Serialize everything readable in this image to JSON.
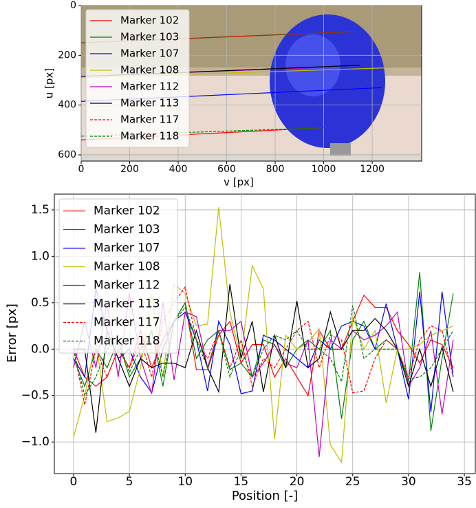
{
  "chart_data": [
    {
      "type": "line",
      "xlabel": "v [px]",
      "ylabel": "u [px]",
      "xlim": [
        0,
        1404
      ],
      "ylim": [
        625,
        0
      ],
      "xticks": [
        0,
        200,
        400,
        600,
        800,
        1000,
        1200
      ],
      "yticks": [
        0,
        200,
        400,
        600
      ],
      "grid": true,
      "legend": "upper left",
      "series": [
        {
          "name": "Marker 102",
          "color": "#ff0000",
          "dashed": false,
          "x": [
            0,
            1020
          ],
          "values": [
            540,
            490
          ]
        },
        {
          "name": "Marker 103",
          "color": "#008000",
          "dashed": false,
          "x": [
            0,
            1120
          ],
          "values": [
            150,
            105
          ]
        },
        {
          "name": "Marker 107",
          "color": "#0000ff",
          "dashed": false,
          "x": [
            0,
            1240
          ],
          "values": [
            385,
            330
          ]
        },
        {
          "name": "Marker 108",
          "color": "#bfbf00",
          "dashed": false,
          "x": [
            0,
            1280
          ],
          "values": [
            290,
            250
          ]
        },
        {
          "name": "Marker 112",
          "color": "#bf00bf",
          "dashed": false,
          "x": [
            0,
            950
          ],
          "values": [
            285,
            250
          ]
        },
        {
          "name": "Marker 113",
          "color": "#000000",
          "dashed": false,
          "x": [
            0,
            1150
          ],
          "values": [
            285,
            240
          ]
        },
        {
          "name": "Marker 117",
          "color": "#ff0000",
          "dashed": true,
          "x": [
            0,
            1130
          ],
          "values": [
            150,
            105
          ]
        },
        {
          "name": "Marker 118",
          "color": "#008000",
          "dashed": true,
          "x": [
            0,
            1030
          ],
          "values": [
            525,
            490
          ]
        }
      ]
    },
    {
      "type": "line",
      "xlabel": "Position [-]",
      "ylabel": "Error [px]",
      "xlim": [
        -1.72,
        35.98
      ],
      "ylim": [
        -1.34,
        1.67
      ],
      "xticks": [
        0,
        5,
        10,
        15,
        20,
        25,
        30,
        35
      ],
      "yticks": [
        {
          "value": -1.0,
          "label": "−1.0"
        },
        {
          "value": -0.5,
          "label": "−0.5"
        },
        {
          "value": 0.0,
          "label": "0.0"
        },
        {
          "value": 0.5,
          "label": "0.5"
        },
        {
          "value": 1.0,
          "label": "1.0"
        },
        {
          "value": 1.5,
          "label": "1.5"
        }
      ],
      "grid": true,
      "legend": "upper left",
      "x": [
        0,
        1,
        2,
        3,
        4,
        5,
        6,
        7,
        8,
        9,
        10,
        11,
        12,
        13,
        14,
        15,
        16,
        17,
        18,
        19,
        20,
        21,
        22,
        23,
        24,
        25,
        26,
        27,
        28,
        29,
        30,
        31,
        32,
        33,
        34
      ],
      "series": [
        {
          "name": "Marker 102",
          "color": "#ff0000",
          "dashed": false,
          "values": [
            0.0,
            -0.3,
            -0.4,
            -0.3,
            0.0,
            -0.2,
            0.2,
            -0.2,
            0.1,
            0.3,
            0.5,
            -0.22,
            -0.22,
            0.15,
            0.3,
            -0.15,
            0.05,
            0.05,
            -0.3,
            -0.1,
            -0.3,
            -0.5,
            0.2,
            0.0,
            0.0,
            0.3,
            0.58,
            0.45,
            0.45,
            0.2,
            0.05,
            -0.15,
            0.1,
            0.05,
            -0.2
          ]
        },
        {
          "name": "Marker 103",
          "color": "#008000",
          "dashed": false,
          "values": [
            -0.1,
            -0.4,
            0.0,
            -0.2,
            0.1,
            -0.3,
            -0.1,
            0.2,
            -0.4,
            0.3,
            0.5,
            -0.1,
            0.1,
            0.2,
            -0.22,
            -0.15,
            -0.3,
            0.1,
            0.05,
            -0.2,
            0.0,
            0.1,
            0.0,
            0.2,
            -0.75,
            0.1,
            0.3,
            0.0,
            0.1,
            0.0,
            -0.35,
            0.83,
            -0.88,
            -0.1,
            0.6
          ]
        },
        {
          "name": "Marker 107",
          "color": "#0000ff",
          "dashed": false,
          "values": [
            -0.1,
            -0.3,
            0.65,
            0.2,
            -0.1,
            0.0,
            -0.3,
            -0.47,
            0.0,
            0.3,
            0.4,
            0.1,
            -0.45,
            0.3,
            0.05,
            -0.48,
            -0.45,
            0.15,
            0.1,
            0.0,
            -0.1,
            -0.2,
            0.1,
            0.0,
            0.25,
            0.3,
            0.25,
            0.0,
            0.49,
            0.0,
            -0.54,
            0.62,
            -0.68,
            0.62,
            -0.3
          ]
        },
        {
          "name": "Marker 108",
          "color": "#bfbf00",
          "dashed": false,
          "values": [
            -0.95,
            -0.5,
            0.1,
            -0.78,
            -0.74,
            -0.67,
            -0.2,
            0.6,
            -0.3,
            0.7,
            0.6,
            0.25,
            0.27,
            1.53,
            0.4,
            -0.1,
            0.9,
            0.65,
            -0.97,
            0.15,
            0.0,
            0.07,
            0.22,
            -1.03,
            -1.22,
            0.35,
            0.0,
            0.2,
            -0.58,
            0.0,
            0.0,
            0.05,
            0.15,
            0.2,
            0.25
          ]
        },
        {
          "name": "Marker 112",
          "color": "#bf00bf",
          "dashed": false,
          "values": [
            -0.2,
            0.3,
            -0.2,
            0.5,
            -0.3,
            0.6,
            -0.1,
            -0.48,
            0.5,
            -0.33,
            0.4,
            0.35,
            -0.2,
            0.2,
            0.2,
            0.3,
            -0.3,
            -0.15,
            0.05,
            -0.15,
            -0.2,
            0.1,
            -1.16,
            0.1,
            0.0,
            0.2,
            0.1,
            0.15,
            0.25,
            0.4,
            -0.4,
            -0.2,
            0.2,
            -0.7,
            0.1
          ]
        },
        {
          "name": "Marker 113",
          "color": "#000000",
          "dashed": false,
          "values": [
            0.0,
            0.0,
            -0.9,
            0.2,
            -0.1,
            -0.4,
            -0.1,
            -0.2,
            -0.15,
            -0.15,
            -0.2,
            0.2,
            -0.2,
            -0.46,
            0.7,
            -0.1,
            0.3,
            -0.46,
            0.15,
            -0.2,
            0.52,
            -0.2,
            -0.1,
            0.4,
            0.0,
            0.2,
            0.2,
            0.33,
            0.2,
            0.0,
            -0.4,
            0.0,
            -0.4,
            0.02,
            -0.46
          ]
        },
        {
          "name": "Marker 117",
          "color": "#ff0000",
          "dashed": true,
          "values": [
            0.0,
            -0.6,
            0.0,
            -0.3,
            0.0,
            -0.2,
            0.1,
            -0.3,
            0.3,
            0.5,
            0.67,
            0.1,
            -0.1,
            0.2,
            -0.2,
            0.1,
            -0.4,
            -0.1,
            -0.2,
            0.0,
            0.2,
            0.3,
            -0.2,
            0.15,
            0.1,
            -0.47,
            -0.45,
            -0.1,
            0.1,
            0.0,
            -0.3,
            0.1,
            0.25,
            0.2,
            -0.3
          ]
        },
        {
          "name": "Marker 118",
          "color": "#008000",
          "dashed": true,
          "values": [
            0.0,
            -0.5,
            -0.3,
            0.0,
            0.1,
            -0.25,
            0.0,
            0.2,
            -0.3,
            0.3,
            0.45,
            0.1,
            -0.2,
            0.2,
            -0.3,
            0.0,
            -0.3,
            0.0,
            0.15,
            0.1,
            0.2,
            0.0,
            0.0,
            -0.1,
            -0.35,
            0.47,
            -0.1,
            0.0,
            0.0,
            0.0,
            -0.32,
            -0.3,
            -0.2,
            0.0,
            0.2
          ]
        }
      ]
    }
  ]
}
